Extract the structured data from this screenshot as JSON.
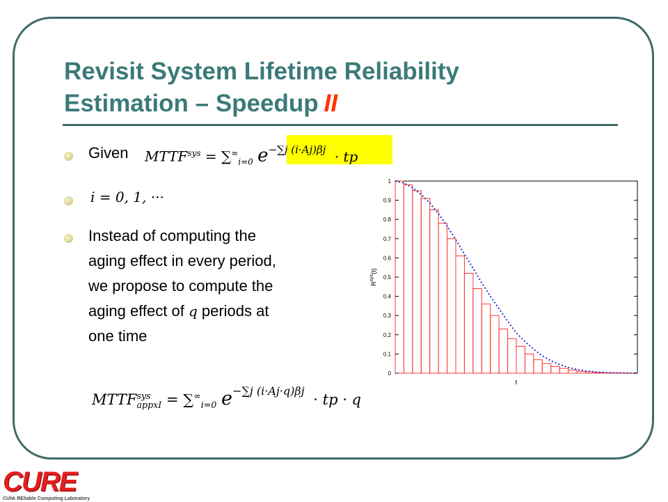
{
  "slide": {
    "title_line1": "Revisit System Lifetime Reliability",
    "title_line2": "Estimation – Speedup",
    "title_accent": "II",
    "bullets": {
      "given": "Given",
      "i_range": "i = 0, 1, ···",
      "instead": [
        "Instead of computing the",
        "aging effect in every period,",
        "we propose to compute the"
      ],
      "aging_of": "aging effect of",
      "q": "q",
      "periods_at": "periods at",
      "one_time": "one time"
    },
    "eq1": {
      "lhs": "MTTF",
      "lhs_sup": "sys",
      "sum": "= ∑",
      "sum_sub": "i=0",
      "sum_sup": "∞",
      "e": "e",
      "exp": "−∑j (i·Aj)βj",
      "tail": "· tp"
    },
    "eq2": {
      "lhs": "MTTF",
      "lhs_sup": "sys",
      "lhs_sub": "appxI",
      "sum": "= ∑",
      "sum_sub": "i=0",
      "sum_sup": "∞",
      "e": "e",
      "exp": "−∑j (i·Aj·q)βj",
      "tail": "· tp · q"
    },
    "colors": {
      "title": "#3b7a78",
      "accent": "#ff3300",
      "frame": "#3f6b6a",
      "highlight": "#ffff00"
    }
  },
  "logo": {
    "text": "CURE",
    "subtitle": "CUhk REliable Computing Laboratory"
  },
  "chart_data": {
    "type": "bar",
    "xlabel": "t",
    "ylabel": "R",
    "ylabel_sup": "sys",
    "ylabel_tail": "(t)",
    "ylim": [
      0,
      1
    ],
    "yticks": [
      "0",
      "0.1",
      "0.2",
      "0.3",
      "0.4",
      "0.5",
      "0.6",
      "0.7",
      "0.8",
      "0.9",
      "1"
    ],
    "grid": false,
    "values": [
      1.0,
      0.98,
      0.95,
      0.91,
      0.85,
      0.78,
      0.7,
      0.61,
      0.52,
      0.44,
      0.36,
      0.3,
      0.23,
      0.18,
      0.14,
      0.1,
      0.07,
      0.05,
      0.035,
      0.025,
      0.016,
      0.01,
      0.007,
      0.004,
      0.002,
      0.0015,
      0.001,
      0.0005
    ],
    "curve": [
      1.0,
      0.99,
      0.965,
      0.93,
      0.885,
      0.83,
      0.765,
      0.695,
      0.62,
      0.545,
      0.47,
      0.4,
      0.335,
      0.27,
      0.21,
      0.165,
      0.125,
      0.09,
      0.065,
      0.045,
      0.03,
      0.02,
      0.012,
      0.007,
      0.004,
      0.002,
      0.001,
      0.0005,
      0.0
    ],
    "bar_color": "#ff3333",
    "curve_color": "#2233cc"
  }
}
